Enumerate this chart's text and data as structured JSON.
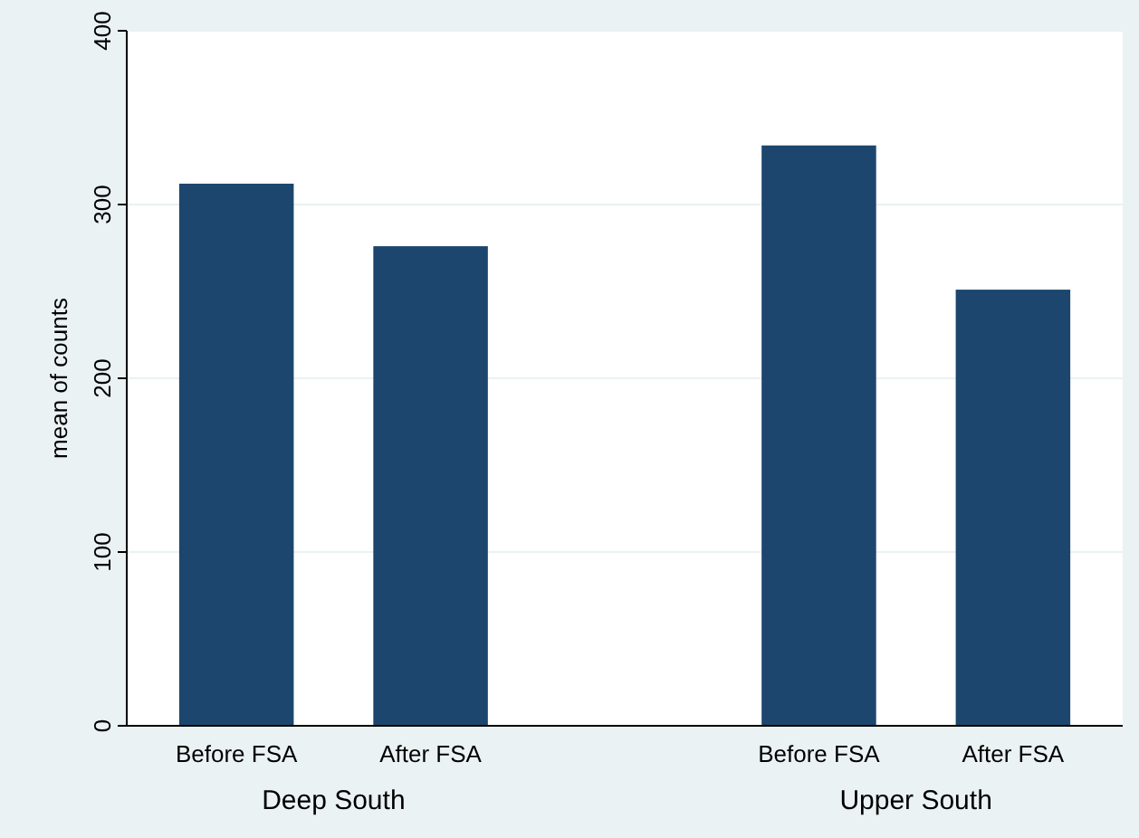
{
  "chart_data": {
    "type": "bar",
    "ylabel": "mean of counts",
    "categories": [
      "Before FSA",
      "After FSA",
      null,
      "Before FSA",
      "After FSA"
    ],
    "values": [
      312,
      276,
      null,
      334,
      251
    ],
    "color": "#1c466d",
    "ylim": [
      0,
      400
    ],
    "yticks": [
      0,
      100,
      200,
      300,
      400
    ],
    "grid": "y",
    "annotations": [
      "Deep South",
      "Upper South"
    ]
  }
}
